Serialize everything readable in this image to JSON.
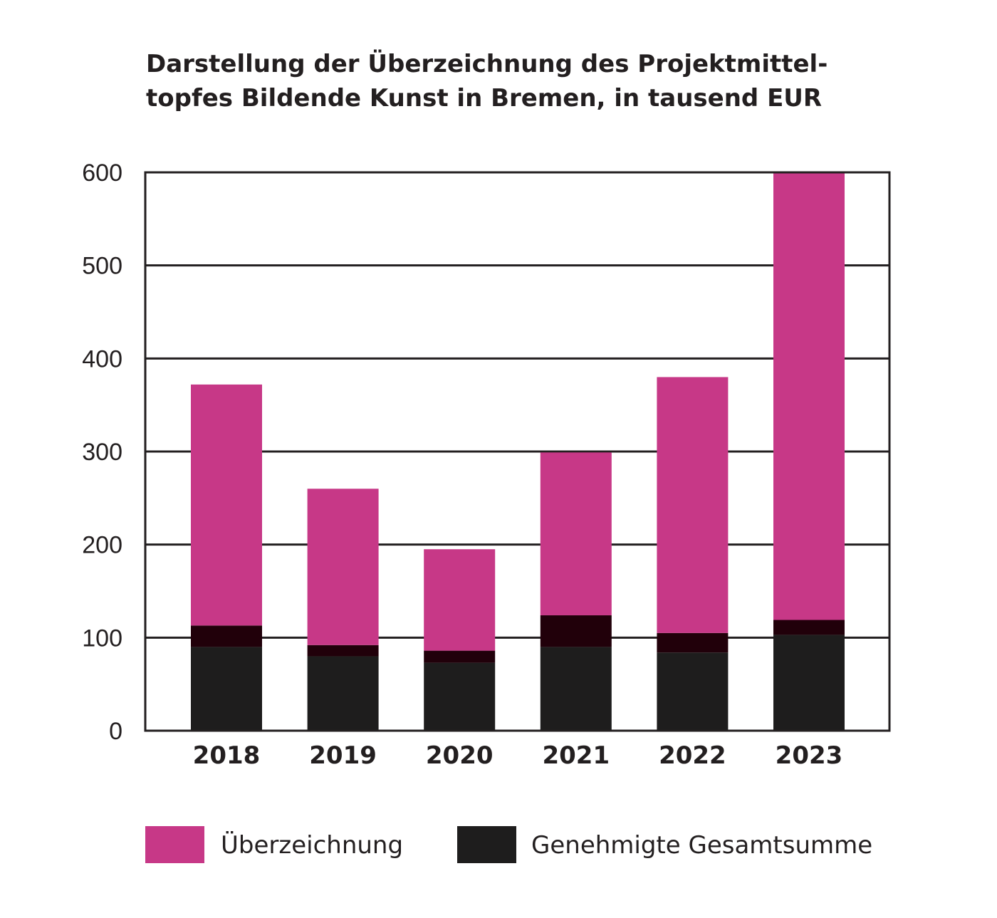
{
  "chart_data": {
    "type": "bar",
    "stacked": true,
    "title_lines": [
      "Darstellung der Überzeichnung des Projektmittel-",
      "topfes Bildende Kunst in Bremen, in tausend EUR"
    ],
    "categories": [
      "2018",
      "2019",
      "2020",
      "2021",
      "2022",
      "2023"
    ],
    "ylim": [
      0,
      600
    ],
    "yticks": [
      "0",
      "100",
      "200",
      "300",
      "400",
      "500",
      "600"
    ],
    "ytick_values": [
      0,
      100,
      200,
      300,
      400,
      500,
      600
    ],
    "grid": true,
    "legend_position": "bottom",
    "series": [
      {
        "name": "Genehmigte Gesamtsumme",
        "color": "#1e1d1d",
        "values": [
          90,
          80,
          73,
          90,
          84,
          103
        ],
        "edge_values": [
          23,
          12,
          13,
          34,
          21,
          16
        ],
        "edge_color": "#21000a"
      },
      {
        "name": "Überzeichnung",
        "color": "#c73887",
        "values": [
          259,
          168,
          109,
          175,
          275,
          480
        ]
      }
    ]
  }
}
